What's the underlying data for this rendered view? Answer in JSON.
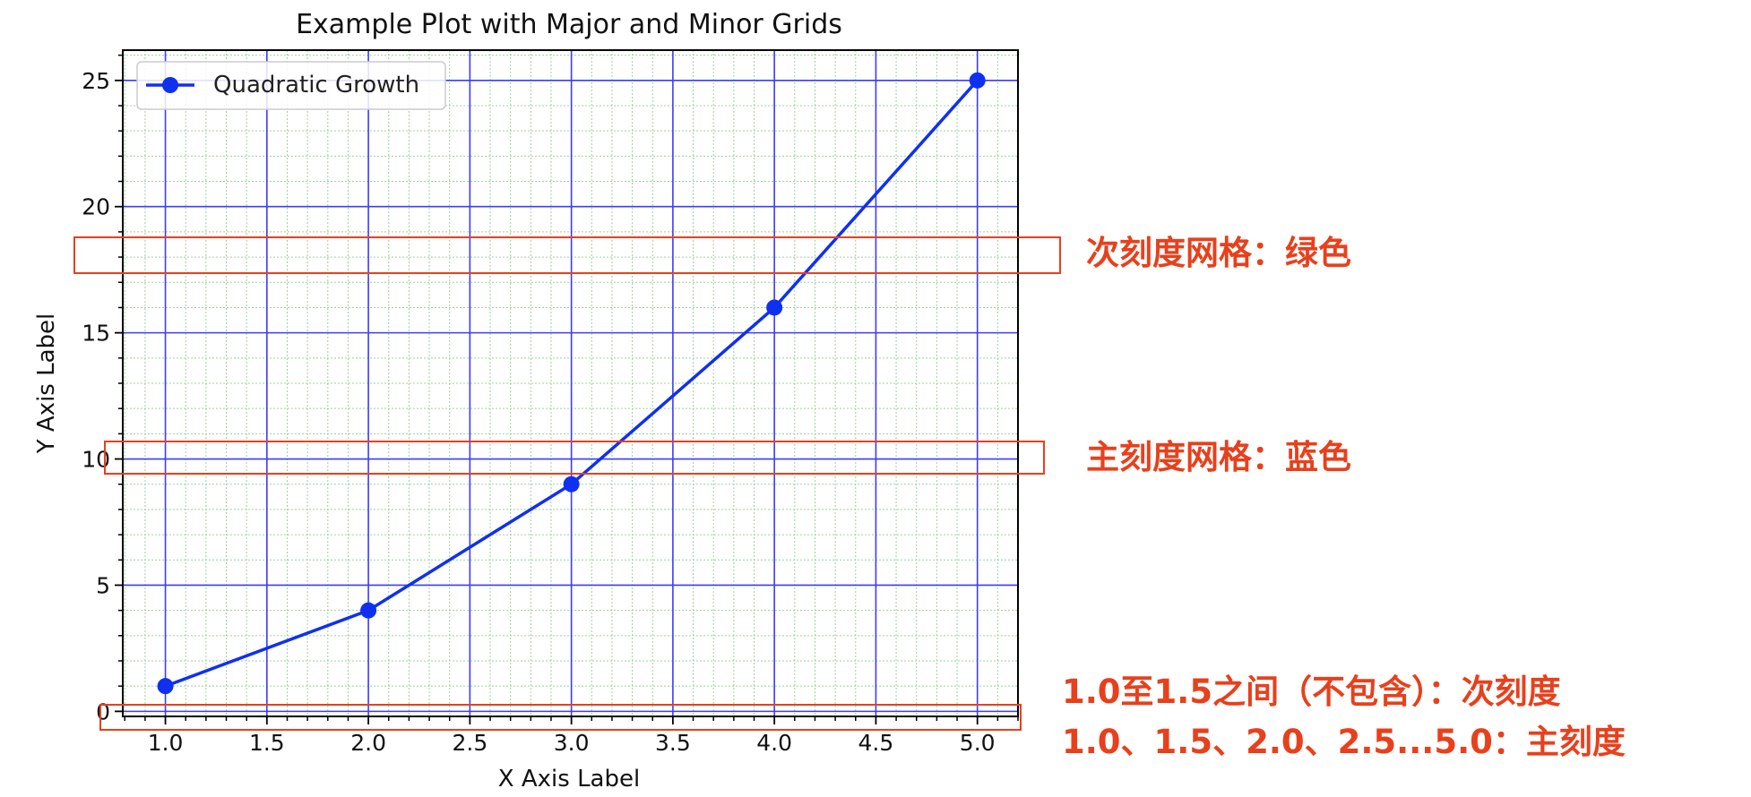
{
  "chart_data": {
    "type": "line",
    "title": "Example Plot with Major and Minor Grids",
    "xlabel": "X Axis Label",
    "ylabel": "Y Axis Label",
    "x": [
      1.0,
      2.0,
      3.0,
      4.0,
      5.0
    ],
    "series": [
      {
        "name": "Quadratic Growth",
        "values": [
          1,
          4,
          9,
          16,
          25
        ],
        "color": "#1030f0",
        "marker": "circle"
      }
    ],
    "xlim": [
      0.79,
      5.2
    ],
    "ylim": [
      -0.2,
      26.2
    ],
    "xticks": [
      1.0,
      1.5,
      2.0,
      2.5,
      3.0,
      3.5,
      4.0,
      4.5,
      5.0
    ],
    "xtick_labels": [
      "1.0",
      "1.5",
      "2.0",
      "2.5",
      "3.0",
      "3.5",
      "4.0",
      "4.5",
      "5.0"
    ],
    "yticks": [
      0,
      5,
      10,
      15,
      20,
      25
    ],
    "ytick_labels": [
      "0",
      "5",
      "10",
      "15",
      "20",
      "25"
    ],
    "x_minor_step": 0.1,
    "y_minor_step": 1,
    "major_grid": {
      "on": true,
      "color": "#3b3bff"
    },
    "minor_grid": {
      "on": true,
      "color": "#9fd19f",
      "style": "dotted"
    },
    "legend": {
      "placement": "top-left",
      "entries": [
        "Quadratic Growth"
      ]
    }
  },
  "annotations": {
    "minor_grid_note": "次刻度网格：绿色",
    "major_grid_note": "主刻度网格：蓝色",
    "minor_tick_note": "1.0至1.5之间（不包含）：次刻度",
    "major_tick_note": "1.0、1.5、2.0、2.5...5.0：主刻度",
    "color": "#e8401c"
  }
}
